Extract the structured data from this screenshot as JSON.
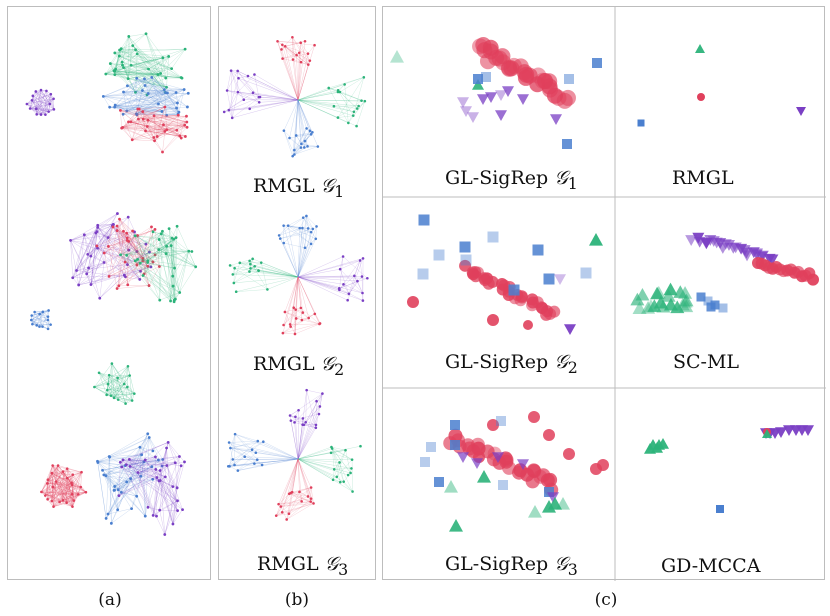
{
  "panels": {
    "a": {
      "caption": "(a)"
    },
    "b": {
      "caption": "(b)",
      "labels": [
        {
          "method": "RMGL",
          "graph": "𝒢",
          "sub": "1"
        },
        {
          "method": "RMGL",
          "graph": "𝒢",
          "sub": "2"
        },
        {
          "method": "RMGL",
          "graph": "𝒢",
          "sub": "3"
        }
      ]
    },
    "c": {
      "caption": "(c)",
      "cells": [
        {
          "method": "GL-SigRep",
          "graph": "𝒢",
          "sub": "1"
        },
        {
          "method": "RMGL",
          "graph": "",
          "sub": ""
        },
        {
          "method": "GL-SigRep",
          "graph": "𝒢",
          "sub": "2"
        },
        {
          "method": "SC-ML",
          "graph": "",
          "sub": ""
        },
        {
          "method": "GL-SigRep",
          "graph": "𝒢",
          "sub": "3"
        },
        {
          "method": "GD-MCCA",
          "graph": "",
          "sub": ""
        }
      ]
    }
  },
  "colors": {
    "red": "#e0405c",
    "purple": "#7a3fc4",
    "blue": "#4a7fcf",
    "green": "#2cb37a",
    "border": "#bdbdbd"
  },
  "legend_classes": [
    "red-circle",
    "purple-triangle-down",
    "blue-square",
    "green-triangle-up"
  ]
}
